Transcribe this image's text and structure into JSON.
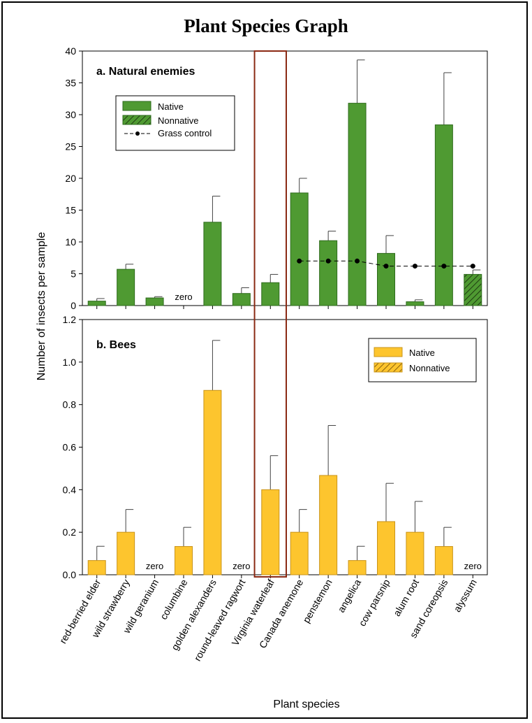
{
  "title": "Plant Species Graph",
  "colors": {
    "native_green": "#4f9a32",
    "native_green_stroke": "#2e6b1c",
    "native_yellow": "#fdc52e",
    "native_yellow_stroke": "#c9941a",
    "highlight_box": "#8b2a14",
    "grass_control": "#000000"
  },
  "chart_data": [
    {
      "type": "bar",
      "panel_label": "a. Natural enemies",
      "ylabel": "Number of insects per sample",
      "xlabel": "Plant species",
      "ylim": [
        0,
        40
      ],
      "yticks": [
        "0",
        "5",
        "10",
        "15",
        "20",
        "25",
        "30",
        "35",
        "40"
      ],
      "categories": [
        "red-berried elder",
        "wild strawberry",
        "wild geranium",
        "columbine",
        "golden alexanders",
        "round-leaved ragwort",
        "Virginia waterleaf",
        "Canada anemone",
        "penstemon",
        "angelica",
        "cow parsnip",
        "alum root",
        "sand coreopsis",
        "alyssum"
      ],
      "values": [
        0.7,
        5.7,
        1.2,
        0,
        13.1,
        1.9,
        3.6,
        17.7,
        10.2,
        31.8,
        8.2,
        0.6,
        28.4,
        4.9
      ],
      "errors": [
        0.4,
        0.8,
        0.2,
        0,
        4.1,
        0.9,
        1.3,
        2.3,
        1.5,
        6.8,
        2.8,
        0.3,
        8.2,
        0.7
      ],
      "nonnative": [
        false,
        false,
        false,
        false,
        false,
        false,
        false,
        false,
        false,
        false,
        false,
        false,
        false,
        true
      ],
      "zero_labels": [
        {
          "index": 3,
          "text": "zero"
        }
      ],
      "grass_control": {
        "start_index": 7,
        "values": [
          7.0,
          7.0,
          7.0,
          6.2,
          6.2,
          6.2,
          6.2
        ]
      },
      "legend": {
        "native": "Native",
        "nonnative": "Nonnative",
        "grass": "Grass control"
      }
    },
    {
      "type": "bar",
      "panel_label": "b. Bees",
      "ylim": [
        0,
        1.2
      ],
      "yticks": [
        "0.0",
        "0.2",
        "0.4",
        "0.6",
        "0.8",
        "1.0",
        "1.2"
      ],
      "categories": [
        "red-berried elder",
        "wild strawberry",
        "wild geranium",
        "columbine",
        "golden alexanders",
        "round-leaved ragwort",
        "Virginia waterleaf",
        "Canada anemone",
        "penstemon",
        "angelica",
        "cow parsnip",
        "alum root",
        "sand coreopsis",
        "alyssum"
      ],
      "values": [
        0.067,
        0.2,
        0,
        0.133,
        0.867,
        0,
        0.4,
        0.2,
        0.467,
        0.067,
        0.25,
        0.2,
        0.133,
        0
      ],
      "errors": [
        0.067,
        0.107,
        0,
        0.09,
        0.235,
        0,
        0.16,
        0.107,
        0.235,
        0.067,
        0.18,
        0.145,
        0.09,
        0
      ],
      "nonnative": [
        false,
        false,
        false,
        false,
        false,
        false,
        false,
        false,
        false,
        false,
        false,
        false,
        false,
        true
      ],
      "zero_labels": [
        {
          "index": 2,
          "text": "zero"
        },
        {
          "index": 5,
          "text": "zero"
        },
        {
          "index": 13,
          "text": "zero"
        }
      ],
      "legend": {
        "native": "Native",
        "nonnative": "Nonnative"
      }
    }
  ],
  "highlight": {
    "category": "Virginia waterleaf"
  }
}
